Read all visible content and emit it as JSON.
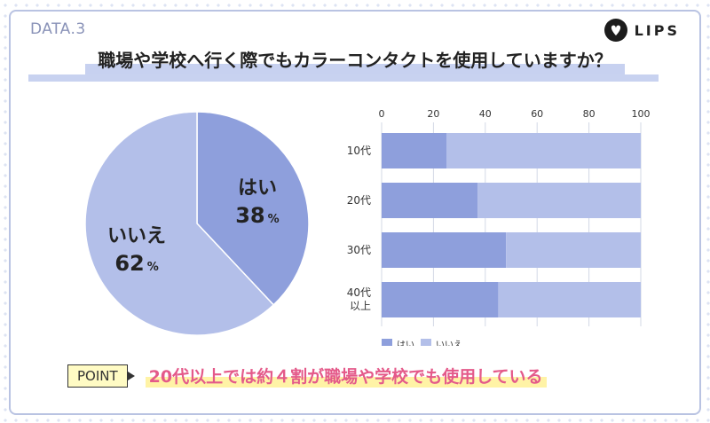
{
  "header": {
    "data_label": "DATA.3",
    "brand": "LIPS"
  },
  "question": "職場や学校へ行く際でもカラーコンタクトを使用していますか？",
  "colors": {
    "yes": "#8e9fdc",
    "no": "#b3bfe9",
    "accent": "#e45a8a",
    "frame": "#b9c3e2"
  },
  "pie": {
    "slices": [
      {
        "label": "はい",
        "value": 38,
        "unit": "%"
      },
      {
        "label": "いいえ",
        "value": 62,
        "unit": "%"
      }
    ]
  },
  "chart_data": {
    "type": "bar",
    "orientation": "horizontal",
    "stacked": true,
    "x_ticks": [
      "0",
      "20",
      "40",
      "60",
      "80",
      "100"
    ],
    "xlim": [
      0,
      100
    ],
    "categories": [
      [
        "10代"
      ],
      [
        "20代"
      ],
      [
        "30代"
      ],
      [
        "40代",
        "以上"
      ]
    ],
    "series": [
      {
        "name": "はい",
        "values": [
          25,
          37,
          48,
          45
        ]
      },
      {
        "name": "いいえ",
        "values": [
          75,
          63,
          52,
          55
        ]
      }
    ],
    "legend": [
      "はい",
      "いいえ"
    ],
    "grid": true,
    "legend_position": "bottom-left"
  },
  "point": {
    "tag": "POINT",
    "text": "20代以上では約４割が職場や学校でも使用している"
  }
}
